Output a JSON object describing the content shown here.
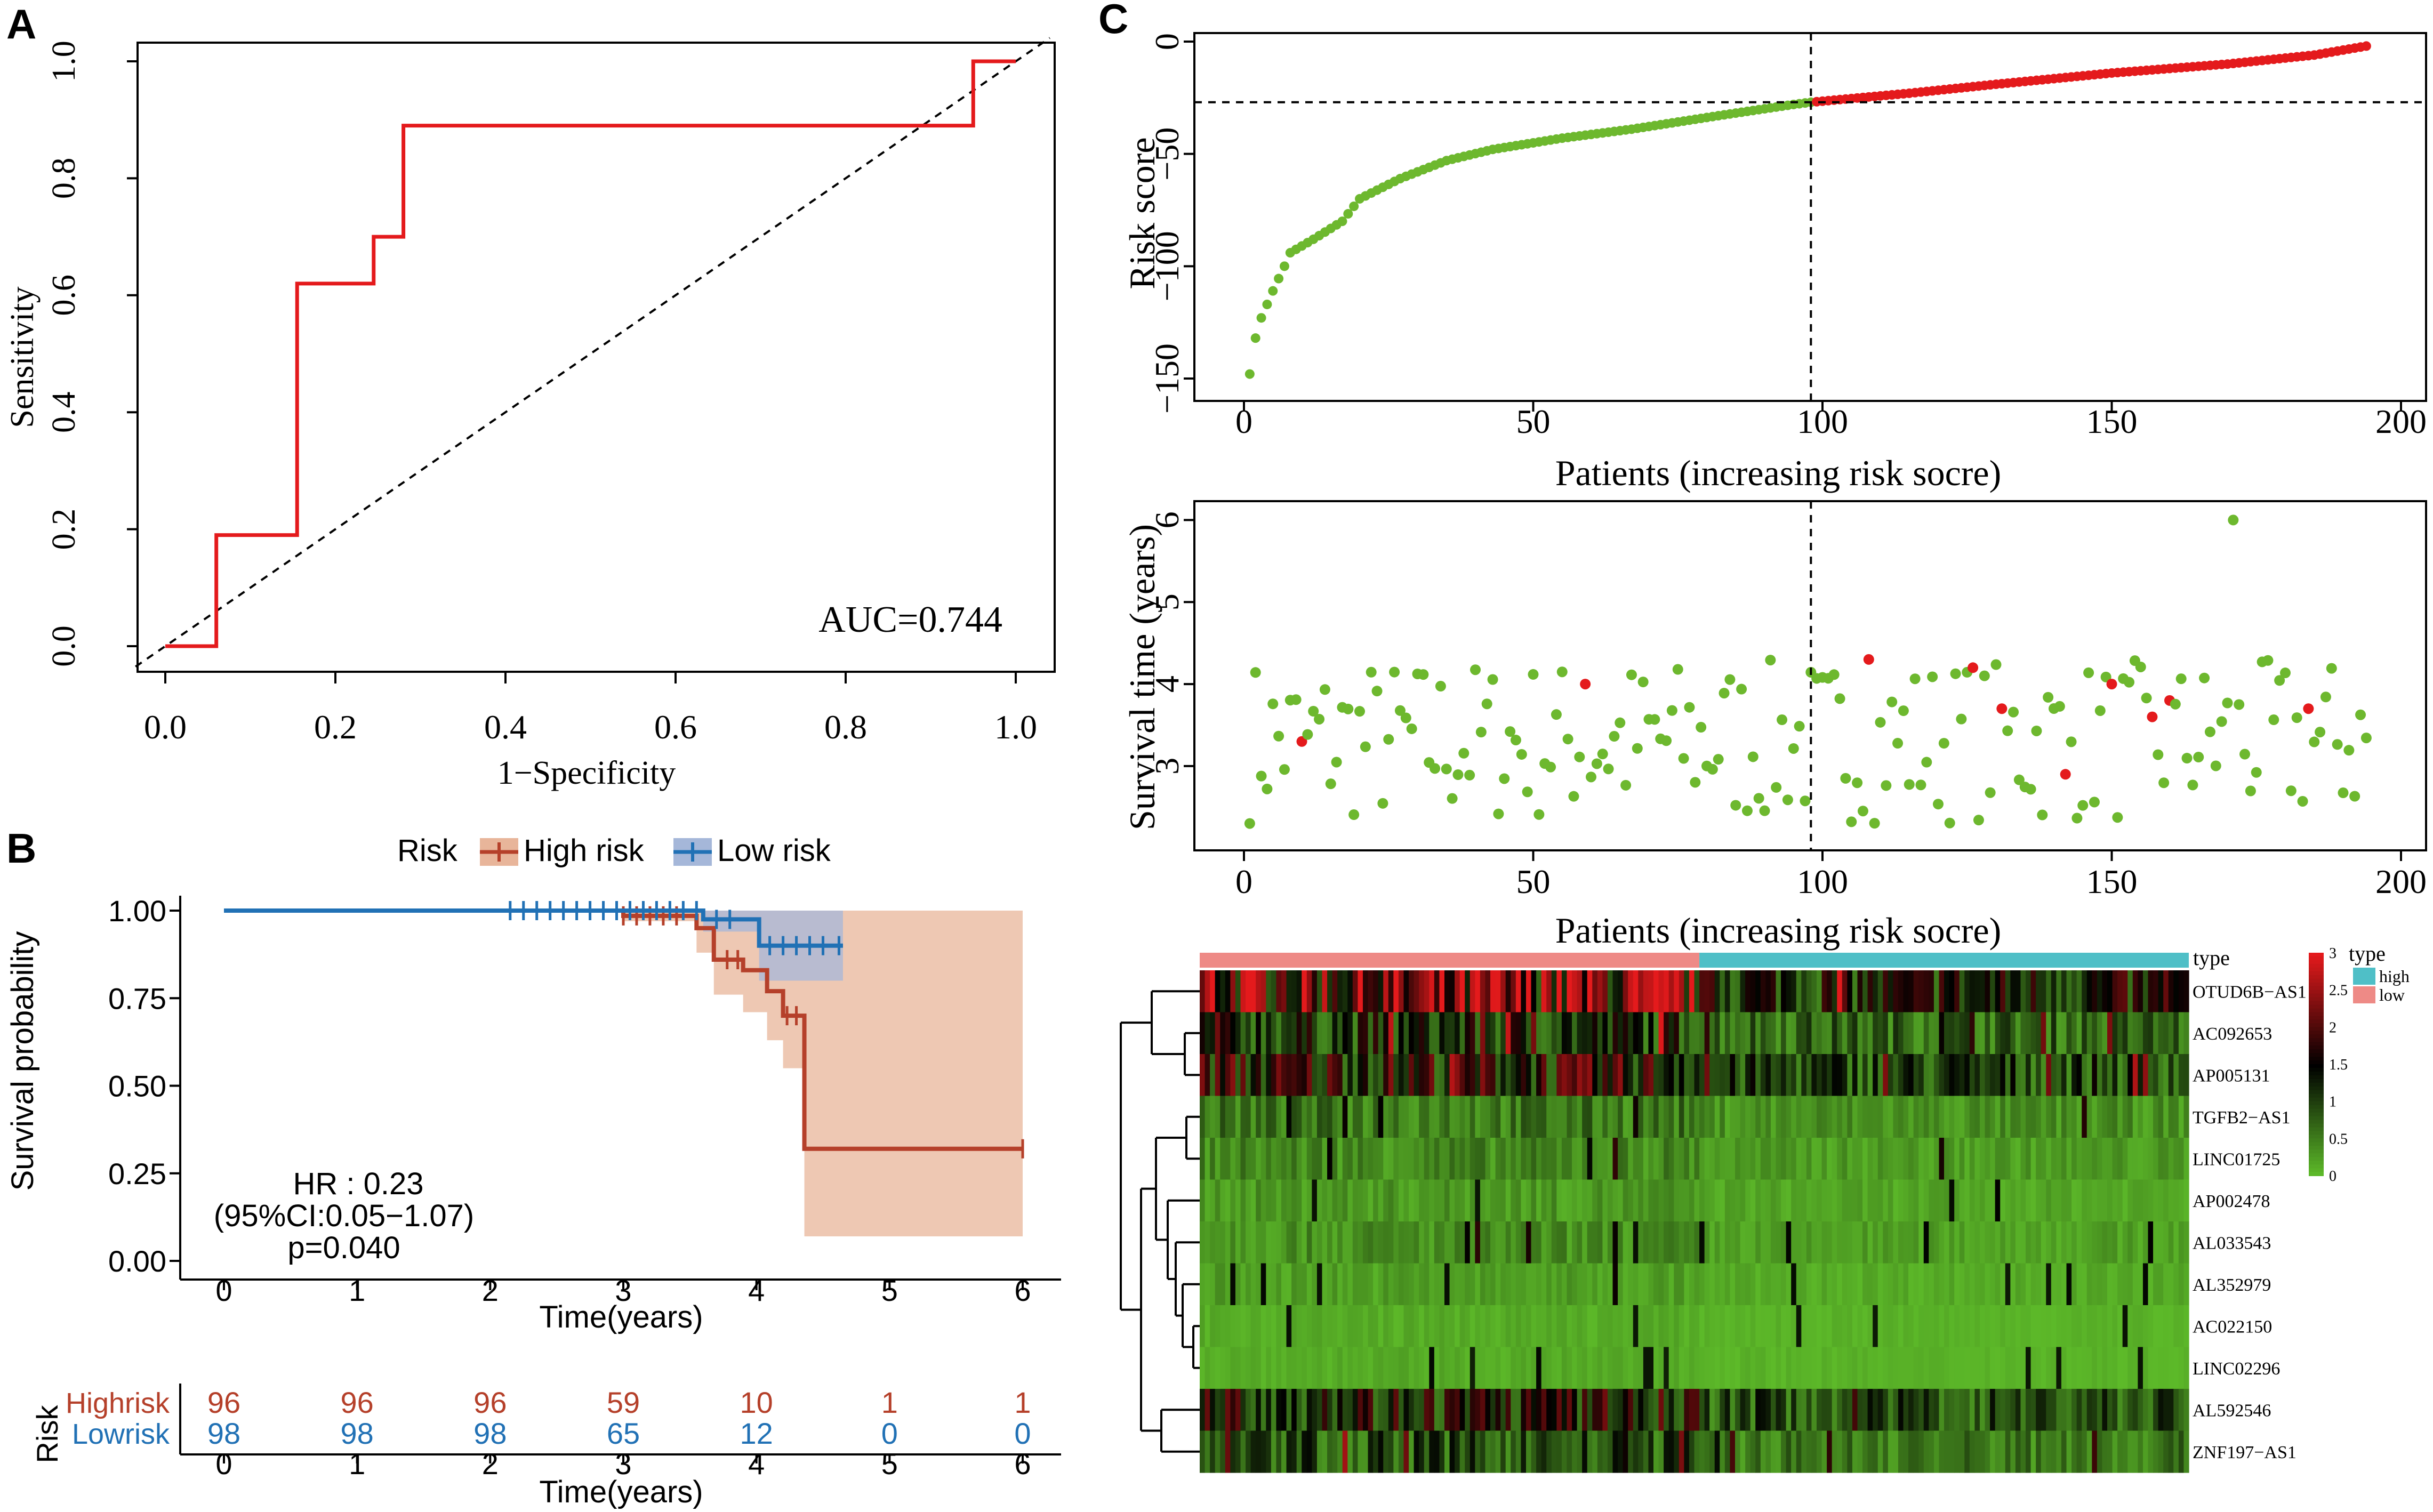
{
  "panel_labels": {
    "a": "A",
    "b": "B",
    "c": "C"
  },
  "colors": {
    "roc": "#e41a1c",
    "high": "#e41a1c",
    "low": "#6db82e",
    "km_high": "#b5402a",
    "km_low": "#2171b5",
    "km_high_fill": "#e8b59a",
    "km_low_fill": "#a5b7d9",
    "type_high": "#4fbfc7",
    "type_low": "#ee8a86",
    "heat_low": "#5fbe2a",
    "heat_mid": "#000000",
    "heat_high": "#e41a1c"
  },
  "chart_data": [
    {
      "id": "A",
      "type": "line",
      "xlabel": "1−Specificity",
      "ylabel": "Sensitivity",
      "xlim": [
        0,
        1
      ],
      "ylim": [
        0,
        1
      ],
      "xticks": [
        "0.0",
        "0.2",
        "0.4",
        "0.6",
        "0.8",
        "1.0"
      ],
      "yticks": [
        "0.0",
        "0.2",
        "0.4",
        "0.6",
        "0.8",
        "1.0"
      ],
      "annotation": "AUC=0.744",
      "x": [
        0,
        0.06,
        0.06,
        0.155,
        0.155,
        0.245,
        0.245,
        0.28,
        0.28,
        0.95,
        0.95,
        1.0
      ],
      "y": [
        0,
        0,
        0.19,
        0.19,
        0.62,
        0.62,
        0.7,
        0.7,
        0.89,
        0.89,
        1.0,
        1.0
      ],
      "reference_line": [
        [
          0,
          0
        ],
        [
          1,
          1
        ]
      ]
    },
    {
      "id": "B",
      "type": "line",
      "legend_title": "Risk",
      "legend": [
        "High risk",
        "Low risk"
      ],
      "xlabel": "Time(years)",
      "ylabel": "Survival probability",
      "xlim": [
        0,
        6
      ],
      "ylim": [
        0,
        1
      ],
      "xticks": [
        "0",
        "1",
        "2",
        "3",
        "4",
        "5",
        "6"
      ],
      "yticks": [
        "0.00",
        "0.25",
        "0.50",
        "0.75",
        "1.00"
      ],
      "annotations": [
        "HR : 0.23",
        "(95%CI:0.05−1.07)",
        "p=0.040"
      ],
      "series": [
        {
          "name": "High risk",
          "steps": [
            [
              0,
              1.0
            ],
            [
              3.0,
              0.985
            ],
            [
              3.55,
              0.95
            ],
            [
              3.68,
              0.86
            ],
            [
              3.9,
              0.83
            ],
            [
              4.08,
              0.77
            ],
            [
              4.2,
              0.7
            ],
            [
              4.36,
              0.32
            ],
            [
              6.0,
              0.32
            ]
          ],
          "ci": [
            [
              0,
              1,
              1
            ],
            [
              3.0,
              0.97,
              1.0
            ],
            [
              3.55,
              0.88,
              1.0
            ],
            [
              3.68,
              0.76,
              1.0
            ],
            [
              3.9,
              0.71,
              1.0
            ],
            [
              4.08,
              0.63,
              1.0
            ],
            [
              4.2,
              0.55,
              1.0
            ],
            [
              4.36,
              0.07,
              1.0
            ],
            [
              6.0,
              0.07,
              1.0
            ]
          ],
          "censor": [
            3.0,
            3.1,
            3.2,
            3.3,
            3.4,
            3.78,
            3.86,
            4.23,
            4.3,
            6.0
          ]
        },
        {
          "name": "Low risk",
          "steps": [
            [
              0,
              1.0
            ],
            [
              3.6,
              0.975
            ],
            [
              4.02,
              0.9
            ],
            [
              4.65,
              0.9
            ]
          ],
          "ci": [
            [
              0,
              1,
              1
            ],
            [
              3.6,
              0.94,
              1.0
            ],
            [
              4.02,
              0.8,
              1.0
            ],
            [
              4.65,
              0.8,
              1.0
            ]
          ],
          "censor": [
            2.15,
            2.25,
            2.35,
            2.45,
            2.55,
            2.65,
            2.75,
            2.85,
            2.95,
            3.05,
            3.15,
            3.25,
            3.35,
            3.45,
            3.55,
            3.7,
            3.8,
            4.1,
            4.2,
            4.3,
            4.4,
            4.5,
            4.62
          ]
        }
      ],
      "risk_table": {
        "label": "Risk",
        "xlabel": "Time(years)",
        "rows": [
          {
            "name": "Highrisk",
            "counts": [
              "96",
              "96",
              "96",
              "59",
              "10",
              "1",
              "1"
            ]
          },
          {
            "name": "Lowrisk",
            "counts": [
              "98",
              "98",
              "98",
              "65",
              "12",
              "0",
              "0"
            ]
          }
        ]
      }
    },
    {
      "id": "C1",
      "type": "scatter",
      "xlabel": "Patients (increasing risk socre)",
      "ylabel": "Risk score",
      "xlim": [
        0,
        200
      ],
      "ylim": [
        -150,
        0
      ],
      "xticks": [
        "0",
        "50",
        "100",
        "150",
        "200"
      ],
      "yticks": [
        "0",
        "−50",
        "−100",
        "−150"
      ],
      "cutoff_index": 98,
      "cutoff_score": -27,
      "n": 194,
      "curve_anchors": [
        [
          1,
          -148
        ],
        [
          2,
          -132
        ],
        [
          3,
          -123
        ],
        [
          5,
          -111
        ],
        [
          7,
          -100
        ],
        [
          8,
          -94
        ],
        [
          12,
          -88
        ],
        [
          17,
          -80
        ],
        [
          20,
          -70
        ],
        [
          27,
          -61
        ],
        [
          35,
          -53
        ],
        [
          43,
          -48
        ],
        [
          55,
          -43
        ],
        [
          67,
          -39
        ],
        [
          82,
          -33
        ],
        [
          95,
          -28
        ],
        [
          98,
          -27
        ],
        [
          115,
          -23
        ],
        [
          130,
          -19
        ],
        [
          150,
          -14
        ],
        [
          170,
          -10
        ],
        [
          185,
          -6
        ],
        [
          194,
          -2
        ]
      ]
    },
    {
      "id": "C2",
      "type": "scatter",
      "xlabel": "Patients (increasing risk socre)",
      "ylabel": "Survival time (years)",
      "xlim": [
        0,
        200
      ],
      "ylim": [
        2.2,
        6.1
      ],
      "xticks": [
        "0",
        "50",
        "100",
        "150",
        "200"
      ],
      "yticks": [
        "3",
        "4",
        "5",
        "6"
      ],
      "cutoff_index": 98,
      "dead": [
        [
          10,
          3.3
        ],
        [
          59,
          4.0
        ],
        [
          108,
          4.3
        ],
        [
          126,
          4.2
        ],
        [
          131,
          3.7
        ],
        [
          142,
          2.9
        ],
        [
          150,
          4.0
        ],
        [
          157,
          3.6
        ],
        [
          160,
          3.8
        ],
        [
          184,
          3.7
        ]
      ],
      "alive_outlier": [
        171,
        6.0
      ]
    },
    {
      "id": "C3",
      "type": "heatmap",
      "rows": [
        "OTUD6B−AS1",
        "AC092653",
        "AP005131",
        "TGFB2−AS1",
        "LINC01725",
        "AP002478",
        "AL033543",
        "AL352979",
        "AC022150",
        "LINC02296",
        "AL592546",
        "ZNF197−AS1"
      ],
      "row_means": [
        1.6,
        0.9,
        1.2,
        0.45,
        0.35,
        0.25,
        0.3,
        0.2,
        0.12,
        0.12,
        1.1,
        0.7
      ],
      "columns": 194,
      "low_count": 98,
      "annotation_title": "type",
      "legend_title": "type",
      "legend_items": [
        "high",
        "low"
      ],
      "colorbar_ticks": [
        "3",
        "2.5",
        "2",
        "1.5",
        "1",
        "0.5",
        "0"
      ]
    }
  ]
}
